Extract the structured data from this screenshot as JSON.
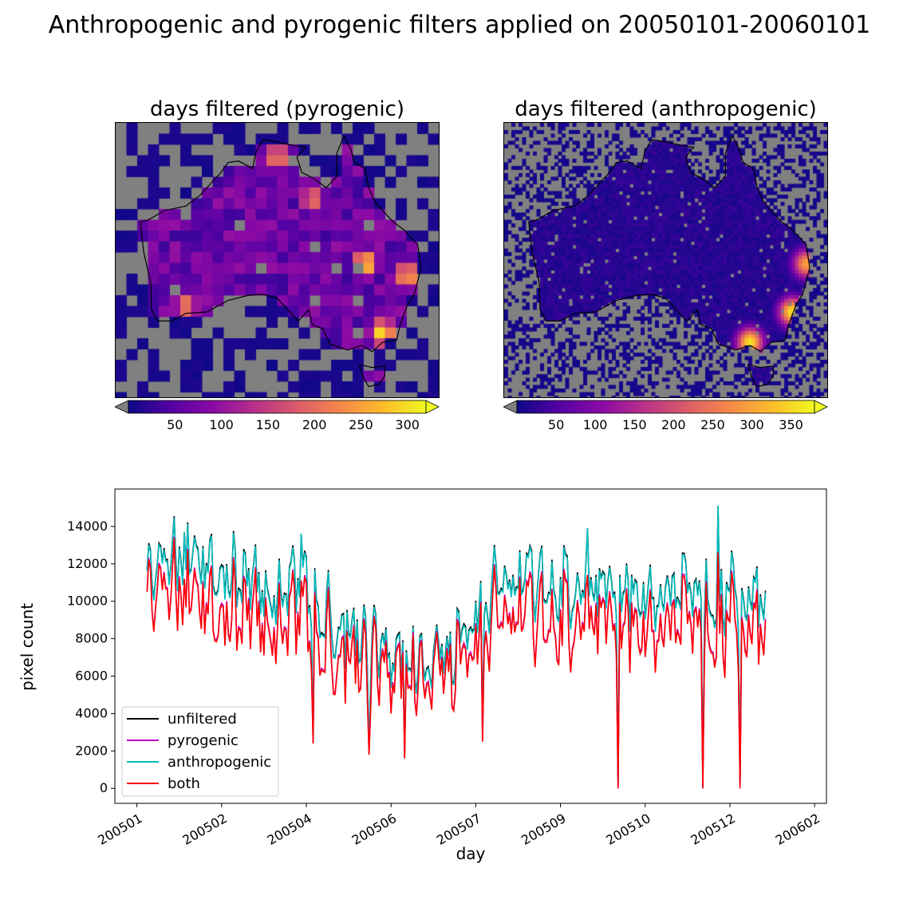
{
  "title": "Anthropogenic and pyrogenic filters applied on 20050101-20060101",
  "maps": [
    {
      "title": "days filtered (pyrogenic)",
      "colorbar": {
        "cmap": "plasma",
        "extend": "both",
        "min": 0,
        "max": 320,
        "ticks": [
          "50",
          "100",
          "150",
          "200",
          "250",
          "300"
        ],
        "tick_values": [
          50,
          100,
          150,
          200,
          250,
          300
        ]
      },
      "hotspots": [
        {
          "lon": 145.5,
          "lat": -27.5,
          "value": 300
        },
        {
          "lon": 151.5,
          "lat": -29.0,
          "value": 270
        },
        {
          "lon": 133.0,
          "lat": -13.5,
          "value": 240
        },
        {
          "lon": 148.0,
          "lat": -36.5,
          "value": 310
        },
        {
          "lon": 138.0,
          "lat": -19.0,
          "value": 220
        },
        {
          "lon": 120.0,
          "lat": -33.0,
          "value": 230
        }
      ]
    },
    {
      "title": "days filtered (anthropogenic)",
      "colorbar": {
        "cmap": "plasma",
        "extend": "both",
        "min": 0,
        "max": 380,
        "ticks": [
          "50",
          "100",
          "150",
          "200",
          "250",
          "300",
          "350"
        ],
        "tick_values": [
          50,
          100,
          150,
          200,
          250,
          300,
          350
        ]
      },
      "hotspots": [
        {
          "lon": 151.0,
          "lat": -33.8,
          "value": 366
        },
        {
          "lon": 145.0,
          "lat": -37.8,
          "value": 366
        },
        {
          "lon": 153.0,
          "lat": -27.5,
          "value": 300
        }
      ]
    }
  ],
  "chart_data": {
    "type": "line",
    "xlabel": "day",
    "ylabel": "pixel count",
    "ylim": [
      -800,
      16000
    ],
    "yticks": [
      "0",
      "2000",
      "4000",
      "6000",
      "8000",
      "10000",
      "12000",
      "14000"
    ],
    "ytick_values": [
      0,
      2000,
      4000,
      6000,
      8000,
      10000,
      12000,
      14000
    ],
    "xticks": [
      "200501",
      "200502",
      "200504",
      "200506",
      "200507",
      "200509",
      "200510",
      "200512",
      "200602"
    ],
    "xtick_dates": [
      "2004-12-26",
      "2005-02-14",
      "2005-04-05",
      "2005-05-25",
      "2005-07-14",
      "2005-09-02",
      "2005-10-22",
      "2005-12-11",
      "2006-01-30"
    ],
    "xlim": [
      "2004-12-13",
      "2006-02-06"
    ],
    "x_start": "2005-01-01",
    "x_end": "2006-01-01",
    "legend": {
      "position": "lower left",
      "entries": [
        "unfiltered",
        "pyrogenic",
        "anthropogenic",
        "both"
      ]
    },
    "colors": {
      "unfiltered": "#000000",
      "pyrogenic": "#bf00bf",
      "anthropogenic": "#00bfbf",
      "both": "#ff0000"
    },
    "series": [
      {
        "name": "unfiltered",
        "knots": [
          [
            0,
            11300
          ],
          [
            15,
            12400
          ],
          [
            30,
            12600
          ],
          [
            45,
            12200
          ],
          [
            60,
            11300
          ],
          [
            75,
            10700
          ],
          [
            90,
            11300
          ],
          [
            105,
            9600
          ],
          [
            120,
            8800
          ],
          [
            135,
            8000
          ],
          [
            150,
            7200
          ],
          [
            165,
            6800
          ],
          [
            180,
            7800
          ],
          [
            195,
            9900
          ],
          [
            210,
            11300
          ],
          [
            225,
            11300
          ],
          [
            240,
            11200
          ],
          [
            255,
            11000
          ],
          [
            270,
            10900
          ],
          [
            285,
            10900
          ],
          [
            300,
            10800
          ],
          [
            315,
            10700
          ],
          [
            330,
            10700
          ],
          [
            345,
            10600
          ],
          [
            365,
            10200
          ]
        ]
      },
      {
        "name": "anthropogenic",
        "knots": [
          [
            0,
            11200
          ],
          [
            15,
            12300
          ],
          [
            30,
            12500
          ],
          [
            45,
            12100
          ],
          [
            60,
            11200
          ],
          [
            75,
            10600
          ],
          [
            90,
            11200
          ],
          [
            105,
            9500
          ],
          [
            120,
            8700
          ],
          [
            135,
            7900
          ],
          [
            150,
            7100
          ],
          [
            165,
            6700
          ],
          [
            180,
            7700
          ],
          [
            195,
            9800
          ],
          [
            210,
            11200
          ],
          [
            225,
            11200
          ],
          [
            240,
            11100
          ],
          [
            255,
            10900
          ],
          [
            270,
            10800
          ],
          [
            285,
            10800
          ],
          [
            300,
            10700
          ],
          [
            315,
            10600
          ],
          [
            330,
            10600
          ],
          [
            345,
            10500
          ],
          [
            365,
            10100
          ]
        ]
      },
      {
        "name": "pyrogenic",
        "knots": [
          [
            0,
            10100
          ],
          [
            15,
            10800
          ],
          [
            30,
            10600
          ],
          [
            45,
            10200
          ],
          [
            60,
            9600
          ],
          [
            75,
            9100
          ],
          [
            90,
            9500
          ],
          [
            105,
            8100
          ],
          [
            120,
            7600
          ],
          [
            135,
            7000
          ],
          [
            150,
            6400
          ],
          [
            165,
            6100
          ],
          [
            180,
            7000
          ],
          [
            195,
            8600
          ],
          [
            210,
            9600
          ],
          [
            225,
            9500
          ],
          [
            240,
            9400
          ],
          [
            255,
            9400
          ],
          [
            270,
            9300
          ],
          [
            285,
            9300
          ],
          [
            300,
            9200
          ],
          [
            315,
            9100
          ],
          [
            330,
            9100
          ],
          [
            345,
            9000
          ],
          [
            365,
            8600
          ]
        ]
      },
      {
        "name": "both",
        "knots": [
          [
            0,
            10000
          ],
          [
            15,
            10700
          ],
          [
            30,
            10500
          ],
          [
            45,
            10100
          ],
          [
            60,
            9500
          ],
          [
            75,
            9000
          ],
          [
            90,
            9400
          ],
          [
            105,
            8000
          ],
          [
            120,
            7500
          ],
          [
            135,
            6900
          ],
          [
            150,
            6300
          ],
          [
            165,
            6000
          ],
          [
            180,
            6900
          ],
          [
            195,
            8500
          ],
          [
            210,
            9500
          ],
          [
            225,
            9400
          ],
          [
            240,
            9300
          ],
          [
            255,
            9300
          ],
          [
            270,
            9200
          ],
          [
            285,
            9200
          ],
          [
            300,
            9100
          ],
          [
            315,
            9000
          ],
          [
            330,
            9000
          ],
          [
            345,
            8900
          ],
          [
            365,
            8500
          ]
        ]
      }
    ],
    "dips": [
      {
        "date": "2005-10-06",
        "both": 0
      },
      {
        "date": "2005-11-25",
        "both": 0
      },
      {
        "date": "2005-12-17",
        "both": 0
      },
      {
        "date": "2005-06-02",
        "both": 1600
      },
      {
        "date": "2005-05-12",
        "both": 1800
      },
      {
        "date": "2005-04-09",
        "both": 2400
      },
      {
        "date": "2005-07-18",
        "both": 2500
      }
    ],
    "peaks": [
      {
        "date": "2005-12-04",
        "unfiltered": 15100
      },
      {
        "date": "2005-01-23",
        "unfiltered": 13700
      },
      {
        "date": "2005-04-02",
        "unfiltered": 13600
      },
      {
        "date": "2005-09-18",
        "unfiltered": 13900
      }
    ]
  }
}
